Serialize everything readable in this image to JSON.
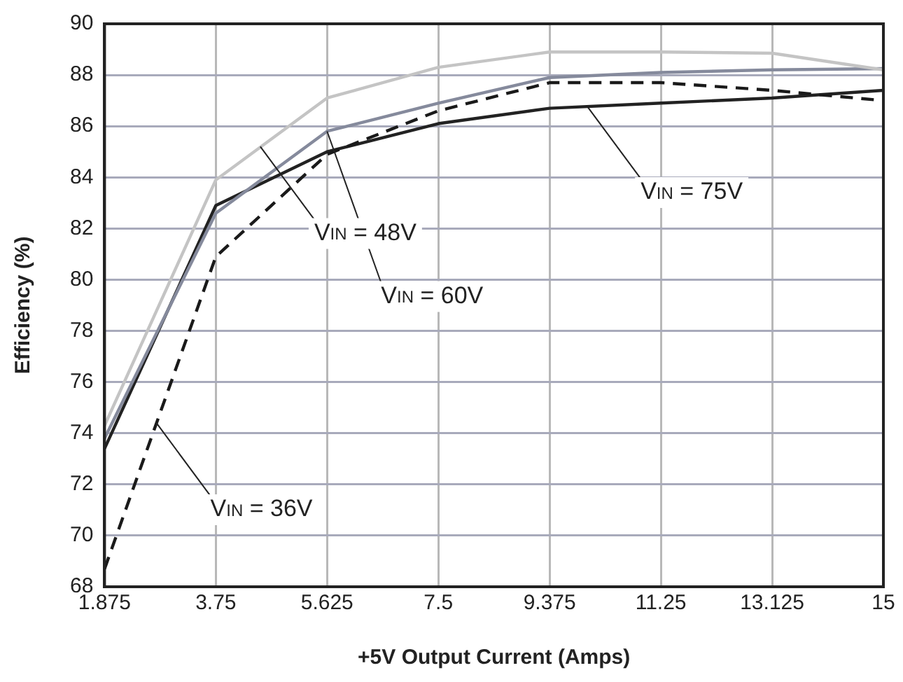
{
  "chart_data": {
    "type": "line",
    "xlabel": "+5V Output Current (Amps)",
    "ylabel": "Efficiency (%)",
    "x": [
      1.875,
      3.75,
      5.625,
      7.5,
      9.375,
      11.25,
      13.125,
      15
    ],
    "series": [
      {
        "color": "#1a1a1a",
        "line_style": "dashed",
        "values": [
          68.7,
          80.9,
          84.9,
          86.6,
          87.7,
          87.7,
          87.4,
          87.0
        ]
      },
      {
        "color": "#c4c4c4",
        "values": [
          74.3,
          83.9,
          87.1,
          88.3,
          88.9,
          88.9,
          88.85,
          88.2
        ]
      },
      {
        "color": "#858a9c",
        "values": [
          73.8,
          82.6,
          85.8,
          86.9,
          87.9,
          88.1,
          88.2,
          88.25
        ]
      },
      {
        "color": "#222222",
        "values": [
          73.4,
          82.9,
          85.0,
          86.1,
          86.7,
          86.9,
          87.1,
          87.4
        ]
      }
    ],
    "xlim": [
      1.875,
      15
    ],
    "xticks": [
      1.875,
      3.75,
      5.625,
      7.5,
      9.375,
      11.25,
      13.125,
      15
    ],
    "ylim": [
      68,
      90
    ],
    "yticks": [
      68,
      70,
      72,
      74,
      76,
      78,
      80,
      82,
      84,
      86,
      88,
      90
    ],
    "grid": true,
    "legend": false,
    "marker": "none",
    "line_style": "solid",
    "annotations": [
      {
        "text": "V$_{IN}$ = 36V",
        "x": 2.75,
        "y": 74.4
      },
      {
        "text": "V$_{IN}$ = 48V",
        "x": 4.5,
        "y": 85.2
      },
      {
        "text": "V$_{IN}$ = 60V",
        "x": 5.625,
        "y": 85.8
      },
      {
        "text": "V$_{IN}$ = 75V",
        "x": 10,
        "y": 86.8
      }
    ]
  }
}
